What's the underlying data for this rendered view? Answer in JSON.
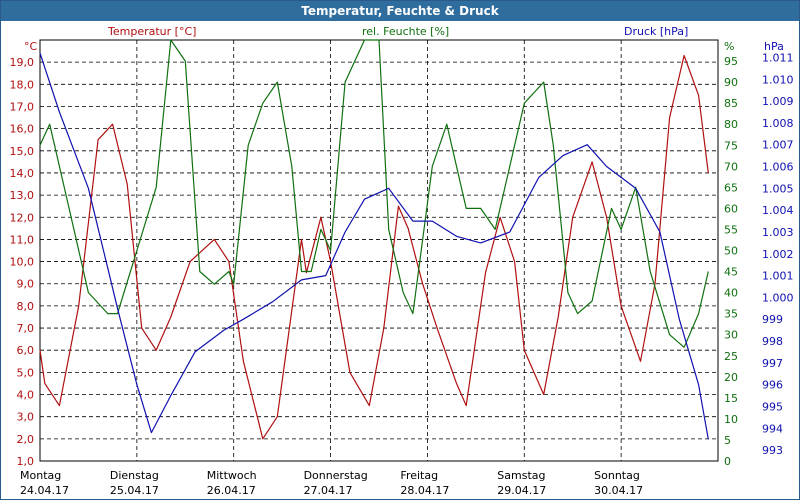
{
  "window": {
    "title": "Temperatur, Feuchte & Druck"
  },
  "chart_data": {
    "type": "line",
    "title": "Temperatur, Feuchte & Druck",
    "grid": true,
    "colors": {
      "temperature": "#b01010",
      "humidity": "#107010",
      "pressure": "#1010b0"
    },
    "axes": {
      "temperature": {
        "label": "Temperatur [°C]",
        "unit": "°C",
        "range": [
          1.0,
          20.0
        ],
        "ticks": [
          "1,0",
          "2,0",
          "3,0",
          "4,0",
          "5,0",
          "6,0",
          "7,0",
          "8,0",
          "9,0",
          "10,0",
          "11,0",
          "12,0",
          "13,0",
          "14,0",
          "15,0",
          "16,0",
          "17,0",
          "18,0",
          "19,0"
        ]
      },
      "humidity": {
        "label": "rel. Feuchte [%]",
        "unit": "%",
        "range": [
          0,
          100
        ],
        "ticks": [
          "0",
          "5",
          "10",
          "15",
          "20",
          "25",
          "30",
          "35",
          "40",
          "45",
          "50",
          "55",
          "60",
          "65",
          "70",
          "75",
          "80",
          "85",
          "90",
          "95"
        ]
      },
      "pressure": {
        "label": "Druck [hPa]",
        "unit": "hPa",
        "range": [
          992.5,
          1011.8
        ],
        "ticks": [
          "993",
          "994",
          "995",
          "996",
          "997",
          "998",
          "999",
          "1.000",
          "1.001",
          "1.002",
          "1.003",
          "1.004",
          "1.005",
          "1.006",
          "1.007",
          "1.008",
          "1.009",
          "1.010",
          "1.011"
        ]
      }
    },
    "days": [
      {
        "name": "Montag",
        "date": "24.04.17"
      },
      {
        "name": "Dienstag",
        "date": "25.04.17"
      },
      {
        "name": "Mittwoch",
        "date": "26.04.17"
      },
      {
        "name": "Donnerstag",
        "date": "27.04.17"
      },
      {
        "name": "Freitag",
        "date": "28.04.17"
      },
      {
        "name": "Samstag",
        "date": "29.04.17"
      },
      {
        "name": "Sonntag",
        "date": "30.04.17"
      }
    ],
    "series": [
      {
        "name": "Temperatur [°C]",
        "axis": "temperature",
        "color": "#b01010",
        "x": [
          0,
          0.05,
          0.2,
          0.4,
          0.6,
          0.75,
          0.9,
          1.05,
          1.2,
          1.35,
          1.55,
          1.8,
          1.95,
          2.1,
          2.3,
          2.45,
          2.7,
          2.75,
          2.9,
          3.0,
          3.2,
          3.4,
          3.55,
          3.7,
          3.8,
          3.95,
          4.1,
          4.3,
          4.4,
          4.6,
          4.75,
          4.9,
          5.0,
          5.2,
          5.35,
          5.5,
          5.7,
          5.85,
          6.0,
          6.2,
          6.35,
          6.5,
          6.65,
          6.8,
          6.9
        ],
        "values": [
          6.0,
          4.5,
          3.5,
          8.0,
          15.5,
          16.2,
          13.5,
          7.0,
          6.0,
          7.5,
          10.0,
          11.0,
          10.0,
          5.5,
          2.0,
          3.0,
          11.0,
          9.5,
          12.0,
          10.0,
          5.0,
          3.5,
          7.0,
          12.5,
          11.5,
          9.0,
          7.0,
          4.5,
          3.5,
          9.5,
          12.0,
          10.0,
          6.0,
          4.0,
          7.5,
          12.0,
          14.5,
          12.0,
          8.0,
          5.5,
          9.0,
          16.5,
          19.3,
          17.5,
          14.0
        ]
      },
      {
        "name": "rel. Feuchte [%]",
        "axis": "humidity",
        "color": "#107010",
        "x": [
          0,
          0.1,
          0.3,
          0.5,
          0.7,
          0.8,
          1.0,
          1.2,
          1.35,
          1.5,
          1.65,
          1.8,
          1.95,
          2.0,
          2.15,
          2.3,
          2.45,
          2.6,
          2.7,
          2.8,
          2.9,
          3.0,
          3.15,
          3.35,
          3.5,
          3.6,
          3.75,
          3.85,
          4.05,
          4.2,
          4.4,
          4.5,
          4.55,
          4.7,
          4.85,
          5.0,
          5.2,
          5.3,
          5.45,
          5.55,
          5.7,
          5.9,
          6.0,
          6.15,
          6.3,
          6.5,
          6.65,
          6.8,
          6.9
        ],
        "values": [
          75,
          80,
          60,
          40,
          35,
          35,
          50,
          65,
          100,
          95,
          45,
          42,
          45,
          42,
          75,
          85,
          90,
          70,
          45,
          45,
          55,
          50,
          90,
          100,
          100,
          55,
          40,
          35,
          70,
          80,
          60,
          60,
          60,
          55,
          70,
          85,
          90,
          75,
          40,
          35,
          38,
          60,
          55,
          65,
          45,
          30,
          27,
          35,
          45
        ]
      },
      {
        "name": "Druck [hPa]",
        "axis": "pressure",
        "color": "#1010b0",
        "x": [
          0,
          0.2,
          0.5,
          0.8,
          1.0,
          1.15,
          1.35,
          1.6,
          1.9,
          2.1,
          2.4,
          2.7,
          2.95,
          3.15,
          3.35,
          3.6,
          3.85,
          4.05,
          4.3,
          4.55,
          4.85,
          5.15,
          5.4,
          5.65,
          5.85,
          6.15,
          6.4,
          6.6,
          6.8,
          6.9
        ],
        "values": [
          1011.2,
          1008.5,
          1005.0,
          999.5,
          996.0,
          993.8,
          995.5,
          997.5,
          998.5,
          999.0,
          999.8,
          1000.8,
          1001.0,
          1003.0,
          1004.5,
          1005.0,
          1003.5,
          1003.5,
          1002.8,
          1002.5,
          1003.0,
          1005.5,
          1006.5,
          1007.0,
          1006.0,
          1005.0,
          1003.0,
          999.0,
          996.0,
          993.5
        ]
      }
    ]
  }
}
